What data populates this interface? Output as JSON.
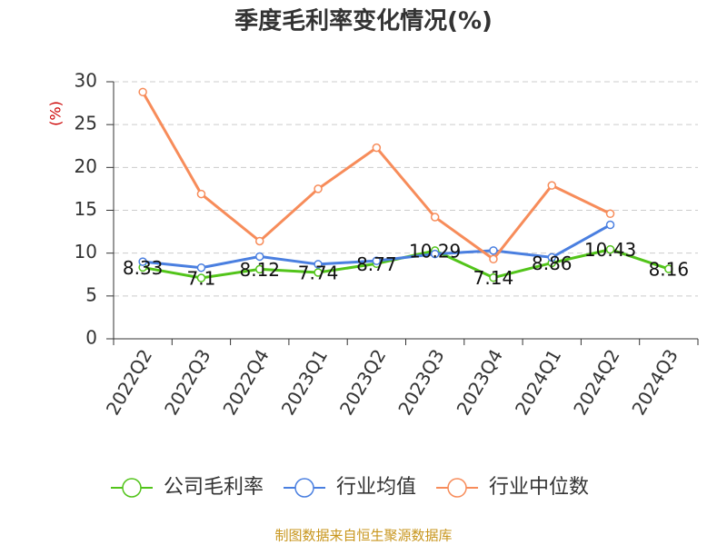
{
  "chart_data": {
    "type": "line",
    "title": "季度毛利率变化情况(%)",
    "y_label": "(%)",
    "categories": [
      "2022Q2",
      "2022Q3",
      "2022Q4",
      "2023Q1",
      "2023Q2",
      "2023Q3",
      "2023Q4",
      "2024Q1",
      "2024Q2",
      "2024Q3"
    ],
    "series": [
      {
        "name": "公司毛利率",
        "color": "#52c41a",
        "values": [
          8.33,
          7.1,
          8.12,
          7.74,
          8.77,
          10.29,
          7.14,
          8.86,
          10.43,
          8.16
        ],
        "show_labels": true
      },
      {
        "name": "行业均值",
        "color": "#4a7fe0",
        "values": [
          9.0,
          8.3,
          9.6,
          8.7,
          9.1,
          9.9,
          10.3,
          9.5,
          13.3,
          null
        ]
      },
      {
        "name": "行业中位数",
        "color": "#f78c5a",
        "values": [
          28.8,
          16.9,
          11.4,
          17.5,
          22.3,
          14.2,
          9.3,
          17.9,
          14.6,
          null
        ]
      }
    ],
    "ylim": [
      0,
      30
    ],
    "yticks": [
      0,
      5,
      10,
      15,
      20,
      25,
      30
    ],
    "grid": true,
    "source": "制图数据来自恒生聚源数据库"
  }
}
